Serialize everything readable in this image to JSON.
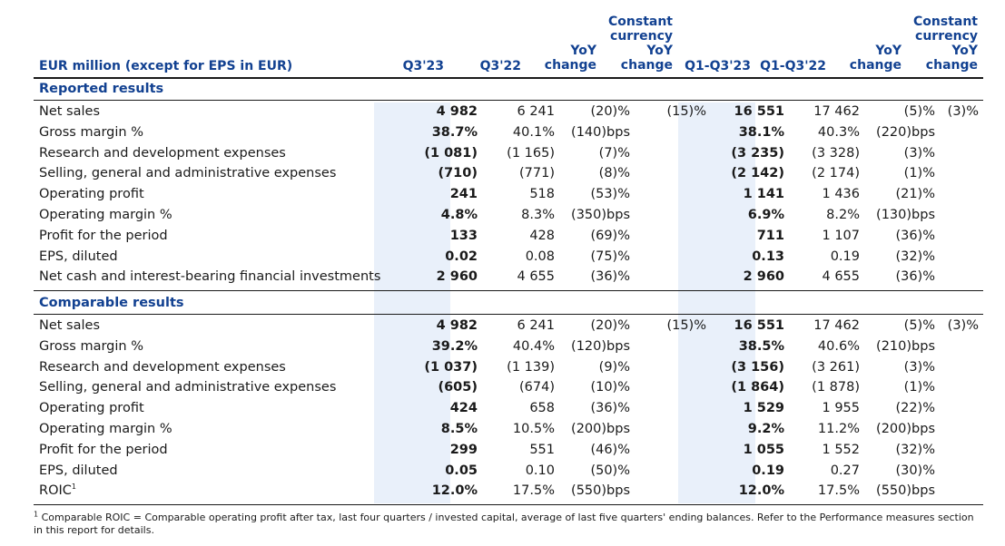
{
  "header": {
    "label_col": "EUR million (except for EPS in EUR)",
    "q3_23": "Q3'23",
    "q3_22": "Q3'22",
    "yoy_line1": "YoY",
    "yoy_line2": "change",
    "cc_line1": "Constant",
    "cc_line2": "currency",
    "cc_line3": "YoY",
    "cc_line4": "change",
    "q1q3_23": "Q1-Q3'23",
    "q1q3_22": "Q1-Q3'22",
    "yoy2_line1": "YoY",
    "yoy2_line2": "change",
    "cc2_line1": "Constant",
    "cc2_line2": "currency",
    "cc2_line3": "YoY",
    "cc2_line4": "change"
  },
  "reported": {
    "title": "Reported results",
    "rows": [
      {
        "label": "Net sales",
        "q3_23": "4 982",
        "q3_22": "6 241",
        "yoy": "(20)%",
        "cc": "(15)%",
        "ytd_23": "16 551",
        "ytd_22": "17 462",
        "yoy_ytd": "(5)%",
        "cc_ytd": "(3)%"
      },
      {
        "label": "Gross margin %",
        "q3_23": "38.7%",
        "q3_22": "40.1%",
        "yoy": "(140)bps",
        "cc": "",
        "ytd_23": "38.1%",
        "ytd_22": "40.3%",
        "yoy_ytd": "(220)bps",
        "cc_ytd": ""
      },
      {
        "label": "Research and development expenses",
        "q3_23": "(1 081)",
        "q3_22": "(1 165)",
        "yoy": "(7)%",
        "cc": "",
        "ytd_23": "(3 235)",
        "ytd_22": "(3 328)",
        "yoy_ytd": "(3)%",
        "cc_ytd": ""
      },
      {
        "label": "Selling, general and administrative expenses",
        "q3_23": "(710)",
        "q3_22": "(771)",
        "yoy": "(8)%",
        "cc": "",
        "ytd_23": "(2 142)",
        "ytd_22": "(2 174)",
        "yoy_ytd": "(1)%",
        "cc_ytd": ""
      },
      {
        "label": "Operating profit",
        "q3_23": "241",
        "q3_22": "518",
        "yoy": "(53)%",
        "cc": "",
        "ytd_23": "1 141",
        "ytd_22": "1 436",
        "yoy_ytd": "(21)%",
        "cc_ytd": ""
      },
      {
        "label": "Operating margin %",
        "q3_23": "4.8%",
        "q3_22": "8.3%",
        "yoy": "(350)bps",
        "cc": "",
        "ytd_23": "6.9%",
        "ytd_22": "8.2%",
        "yoy_ytd": "(130)bps",
        "cc_ytd": ""
      },
      {
        "label": "Profit for the period",
        "q3_23": "133",
        "q3_22": "428",
        "yoy": "(69)%",
        "cc": "",
        "ytd_23": "711",
        "ytd_22": "1 107",
        "yoy_ytd": "(36)%",
        "cc_ytd": ""
      },
      {
        "label": "EPS, diluted",
        "q3_23": "0.02",
        "q3_22": "0.08",
        "yoy": "(75)%",
        "cc": "",
        "ytd_23": "0.13",
        "ytd_22": "0.19",
        "yoy_ytd": "(32)%",
        "cc_ytd": ""
      },
      {
        "label": "Net cash and interest-bearing financial investments",
        "q3_23": "2 960",
        "q3_22": "4 655",
        "yoy": "(36)%",
        "cc": "",
        "ytd_23": "2 960",
        "ytd_22": "4 655",
        "yoy_ytd": "(36)%",
        "cc_ytd": ""
      }
    ]
  },
  "comparable": {
    "title": "Comparable results",
    "rows": [
      {
        "label": "Net sales",
        "q3_23": "4 982",
        "q3_22": "6 241",
        "yoy": "(20)%",
        "cc": "(15)%",
        "ytd_23": "16 551",
        "ytd_22": "17 462",
        "yoy_ytd": "(5)%",
        "cc_ytd": "(3)%"
      },
      {
        "label": "Gross margin %",
        "q3_23": "39.2%",
        "q3_22": "40.4%",
        "yoy": "(120)bps",
        "cc": "",
        "ytd_23": "38.5%",
        "ytd_22": "40.6%",
        "yoy_ytd": "(210)bps",
        "cc_ytd": ""
      },
      {
        "label": "Research and development expenses",
        "q3_23": "(1 037)",
        "q3_22": "(1 139)",
        "yoy": "(9)%",
        "cc": "",
        "ytd_23": "(3 156)",
        "ytd_22": "(3 261)",
        "yoy_ytd": "(3)%",
        "cc_ytd": ""
      },
      {
        "label": "Selling, general and administrative expenses",
        "q3_23": "(605)",
        "q3_22": "(674)",
        "yoy": "(10)%",
        "cc": "",
        "ytd_23": "(1 864)",
        "ytd_22": "(1 878)",
        "yoy_ytd": "(1)%",
        "cc_ytd": ""
      },
      {
        "label": "Operating profit",
        "q3_23": "424",
        "q3_22": "658",
        "yoy": "(36)%",
        "cc": "",
        "ytd_23": "1 529",
        "ytd_22": "1 955",
        "yoy_ytd": "(22)%",
        "cc_ytd": ""
      },
      {
        "label": "Operating margin %",
        "q3_23": "8.5%",
        "q3_22": "10.5%",
        "yoy": "(200)bps",
        "cc": "",
        "ytd_23": "9.2%",
        "ytd_22": "11.2%",
        "yoy_ytd": "(200)bps",
        "cc_ytd": ""
      },
      {
        "label": "Profit for the period",
        "q3_23": "299",
        "q3_22": "551",
        "yoy": "(46)%",
        "cc": "",
        "ytd_23": "1 055",
        "ytd_22": "1 552",
        "yoy_ytd": "(32)%",
        "cc_ytd": ""
      },
      {
        "label": "EPS, diluted",
        "q3_23": "0.05",
        "q3_22": "0.10",
        "yoy": "(50)%",
        "cc": "",
        "ytd_23": "0.19",
        "ytd_22": "0.27",
        "yoy_ytd": "(30)%",
        "cc_ytd": ""
      },
      {
        "label": "ROIC",
        "label_sup": "1",
        "q3_23": "12.0%",
        "q3_22": "17.5%",
        "yoy": "(550)bps",
        "cc": "",
        "ytd_23": "12.0%",
        "ytd_22": "17.5%",
        "yoy_ytd": "(550)bps",
        "cc_ytd": ""
      }
    ]
  },
  "footnote": {
    "marker": "1",
    "text": " Comparable ROIC = Comparable operating profit after tax, last four quarters / invested capital, average of last five quarters' ending balances. Refer to the Performance measures section in this report for details."
  },
  "colors": {
    "header_blue": "#124191",
    "highlight": "#e9f0fa"
  }
}
